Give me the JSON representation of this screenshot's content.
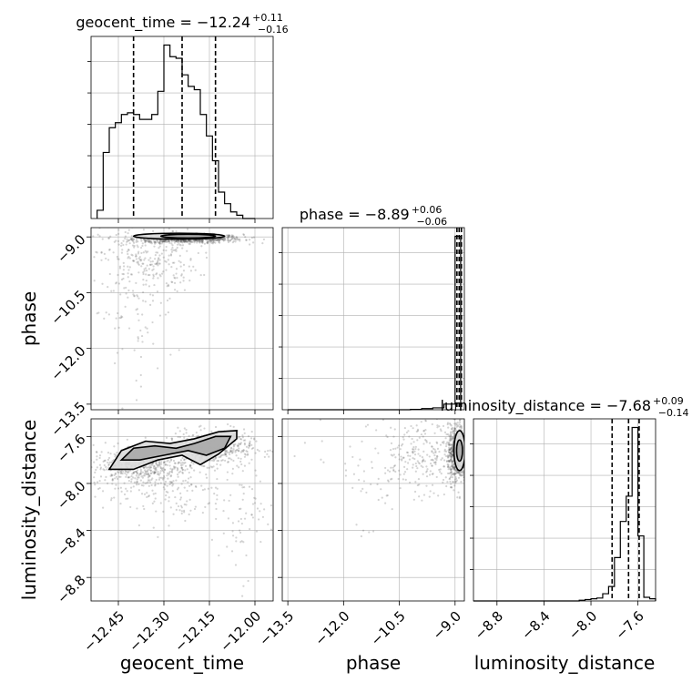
{
  "figure": {
    "type": "corner-plot",
    "parameters": [
      "geocent_time",
      "phase",
      "luminosity_distance"
    ]
  },
  "titles": {
    "geocent_time": {
      "prefix": "geocent_time = ",
      "median": "−12.24",
      "plus": "+0.11",
      "minus": "−0.16"
    },
    "phase": {
      "prefix": "phase = ",
      "median": "−8.89",
      "plus": "+0.06",
      "minus": "−0.06"
    },
    "luminosity_distance": {
      "prefix": "luminosity_distance = ",
      "median": "−7.68",
      "plus": "+0.09",
      "minus": "−0.14"
    }
  },
  "axis_labels": {
    "geocent_time": "geocent_time",
    "phase": "phase",
    "luminosity_distance": "luminosity_distance"
  },
  "ticks": {
    "geocent_time": {
      "values": [
        -12.45,
        -12.3,
        -12.15,
        -12.0
      ],
      "labels": [
        "−12.45",
        "−12.30",
        "−12.15",
        "−12.00"
      ]
    },
    "phase": {
      "values": [
        -13.5,
        -12.0,
        -10.5,
        -9.0
      ],
      "labels": [
        "−13.5",
        "−12.0",
        "−10.5",
        "−9.0"
      ]
    },
    "luminosity_distance": {
      "values": [
        -8.8,
        -8.4,
        -8.0,
        -7.6
      ],
      "labels": [
        "−8.8",
        "−8.4",
        "−8.0",
        "−7.6"
      ]
    }
  },
  "colors": {
    "line": "#000000",
    "grid": "#b0b0b0",
    "points": "#555555",
    "fill_light": "#dcdcdc",
    "fill_mid": "#a8a8a8",
    "fill_dark": "#555555"
  },
  "chart_data": {
    "type": "corner",
    "grid": true,
    "ranges": {
      "geocent_time": [
        -12.54,
        -11.94
      ],
      "phase": [
        -13.65,
        -8.75
      ],
      "luminosity_distance": [
        -9.0,
        -7.45
      ]
    },
    "quantiles": {
      "geocent_time": [
        -12.4,
        -12.24,
        -12.13
      ],
      "phase": [
        -8.95,
        -8.89,
        -8.83
      ],
      "luminosity_distance": [
        -7.82,
        -7.68,
        -7.59
      ]
    },
    "histograms": {
      "geocent_time": {
        "edges": [
          -12.52,
          -12.5,
          -12.48,
          -12.46,
          -12.44,
          -12.42,
          -12.4,
          -12.38,
          -12.36,
          -12.34,
          -12.32,
          -12.3,
          -12.28,
          -12.26,
          -12.24,
          -12.22,
          -12.2,
          -12.18,
          -12.16,
          -12.14,
          -12.12,
          -12.1,
          -12.08,
          -12.06,
          -12.04,
          -12.02,
          -12.0
        ],
        "counts": [
          5,
          40,
          55,
          58,
          63,
          64,
          63,
          60,
          60,
          63,
          77,
          105,
          98,
          97,
          87,
          80,
          78,
          63,
          50,
          35,
          16,
          9,
          4,
          2,
          0,
          0
        ]
      },
      "phase": {
        "edges": [
          -13.5,
          -13.2,
          -12.9,
          -12.6,
          -12.3,
          -12.0,
          -11.7,
          -11.4,
          -11.1,
          -10.8,
          -10.5,
          -10.2,
          -9.9,
          -9.6,
          -9.3,
          -9.0,
          -8.85
        ],
        "counts": [
          0,
          0,
          0,
          0,
          0,
          0,
          0,
          0,
          0,
          0,
          0,
          1,
          3,
          5,
          15,
          460
        ]
      },
      "luminosity_distance": {
        "edges": [
          -9.0,
          -8.95,
          -8.9,
          -8.85,
          -8.8,
          -8.75,
          -8.7,
          -8.65,
          -8.6,
          -8.55,
          -8.5,
          -8.45,
          -8.4,
          -8.35,
          -8.3,
          -8.25,
          -8.2,
          -8.15,
          -8.1,
          -8.05,
          -8.0,
          -7.95,
          -7.9,
          -7.85,
          -7.8,
          -7.75,
          -7.7,
          -7.65,
          -7.6,
          -7.55,
          -7.5,
          -7.45
        ],
        "counts": [
          0,
          0,
          0,
          0,
          0,
          0,
          0,
          0,
          0,
          0,
          0,
          0,
          0,
          0,
          0,
          0,
          0,
          0,
          1,
          2,
          3,
          4,
          10,
          20,
          60,
          110,
          145,
          240,
          90,
          5,
          3
        ]
      }
    },
    "scatter_clusters": {
      "geocent_time_vs_phase": [
        {
          "x": -12.22,
          "y": -9.05,
          "sx": 0.09,
          "sy": 0.06,
          "n": 700
        },
        {
          "x": -12.35,
          "y": -9.6,
          "sx": 0.08,
          "sy": 0.45,
          "n": 260
        },
        {
          "x": -12.4,
          "y": -11.0,
          "sx": 0.07,
          "sy": 1.0,
          "n": 90
        }
      ],
      "geocent_time_vs_luminosity_distance": [
        {
          "x": -12.15,
          "y": -7.7,
          "sx": 0.07,
          "sy": 0.07,
          "n": 520
        },
        {
          "x": -12.38,
          "y": -7.85,
          "sx": 0.08,
          "sy": 0.09,
          "n": 520
        },
        {
          "x": -12.05,
          "y": -8.2,
          "sx": 0.05,
          "sy": 0.3,
          "n": 80
        },
        {
          "x": -12.3,
          "y": -8.1,
          "sx": 0.1,
          "sy": 0.12,
          "n": 120
        }
      ],
      "phase_vs_luminosity_distance": [
        {
          "x": -8.95,
          "y": -7.75,
          "sx": 0.12,
          "sy": 0.12,
          "n": 650
        },
        {
          "x": -9.8,
          "y": -7.75,
          "sx": 0.7,
          "sy": 0.15,
          "n": 260
        },
        {
          "x": -11.0,
          "y": -7.9,
          "sx": 1.0,
          "sy": 0.3,
          "n": 60
        }
      ]
    },
    "contours": {
      "geocent_time_vs_phase": [
        {
          "x": -12.25,
          "y": -8.98,
          "rx": 0.15,
          "ry": 0.08
        },
        {
          "x": -12.22,
          "y": -8.98,
          "rx": 0.09,
          "ry": 0.05
        }
      ],
      "geocent_time_vs_luminosity_distance": [
        {
          "points": [
            [
              -12.48,
              -7.88
            ],
            [
              -12.44,
              -7.72
            ],
            [
              -12.36,
              -7.64
            ],
            [
              -12.28,
              -7.66
            ],
            [
              -12.2,
              -7.62
            ],
            [
              -12.12,
              -7.56
            ],
            [
              -12.06,
              -7.55
            ],
            [
              -12.06,
              -7.62
            ],
            [
              -12.12,
              -7.75
            ],
            [
              -12.18,
              -7.84
            ],
            [
              -12.24,
              -7.76
            ],
            [
              -12.32,
              -7.8
            ],
            [
              -12.4,
              -7.88
            ]
          ]
        },
        {
          "points": [
            [
              -12.44,
              -7.8
            ],
            [
              -12.4,
              -7.7
            ],
            [
              -12.33,
              -7.68
            ],
            [
              -12.26,
              -7.7
            ],
            [
              -12.2,
              -7.66
            ],
            [
              -12.13,
              -7.6
            ],
            [
              -12.08,
              -7.6
            ],
            [
              -12.1,
              -7.7
            ],
            [
              -12.16,
              -7.76
            ],
            [
              -12.22,
              -7.72
            ],
            [
              -12.3,
              -7.76
            ],
            [
              -12.38,
              -7.8
            ]
          ]
        }
      ],
      "phase_vs_luminosity_distance": [
        {
          "x": -8.88,
          "y": -7.72,
          "rx": 0.15,
          "ry": 0.17
        },
        {
          "x": -8.88,
          "y": -7.72,
          "rx": 0.08,
          "ry": 0.09
        }
      ]
    }
  }
}
